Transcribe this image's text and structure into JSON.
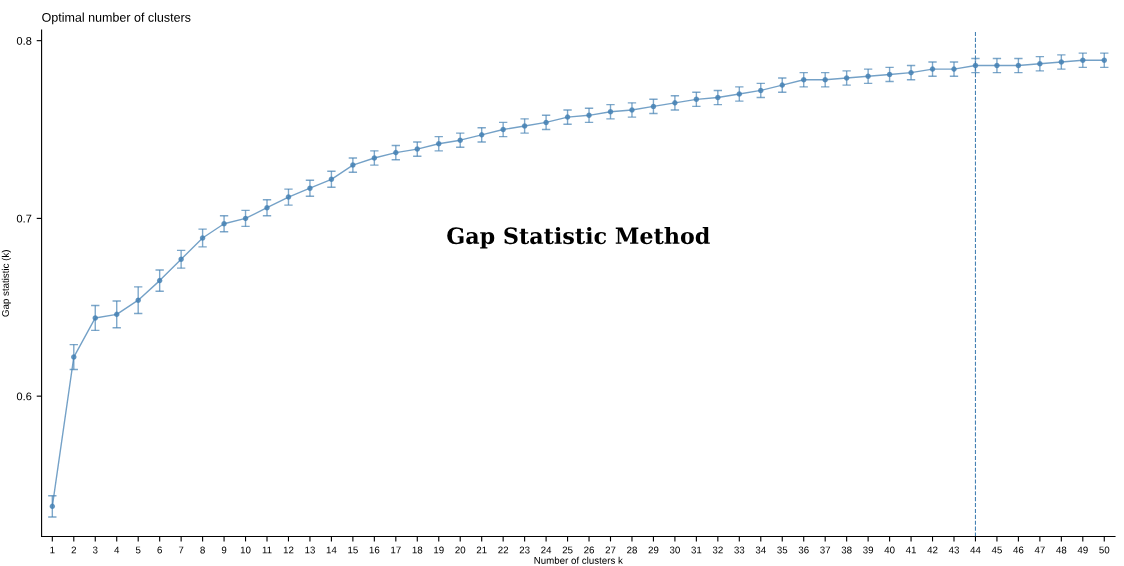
{
  "chart_data": {
    "type": "line",
    "title": "Optimal number of clusters",
    "xlabel": "Number of clusters k",
    "ylabel": "Gap statistic (k)",
    "categories": [
      "1",
      "2",
      "3",
      "4",
      "5",
      "6",
      "7",
      "8",
      "9",
      "10",
      "11",
      "12",
      "13",
      "14",
      "15",
      "16",
      "17",
      "18",
      "19",
      "20",
      "21",
      "22",
      "23",
      "24",
      "25",
      "26",
      "27",
      "28",
      "29",
      "30",
      "31",
      "32",
      "33",
      "34",
      "35",
      "36",
      "37",
      "38",
      "39",
      "40",
      "41",
      "42",
      "43",
      "44",
      "45",
      "46",
      "47",
      "48",
      "49",
      "50"
    ],
    "series": [
      {
        "color": "#4682b4",
        "values": [
          0.538,
          0.622,
          0.644,
          0.646,
          0.654,
          0.665,
          0.677,
          0.689,
          0.697,
          0.7,
          0.706,
          0.712,
          0.717,
          0.722,
          0.73,
          0.734,
          0.737,
          0.739,
          0.742,
          0.744,
          0.747,
          0.75,
          0.752,
          0.754,
          0.757,
          0.758,
          0.76,
          0.761,
          0.763,
          0.765,
          0.767,
          0.768,
          0.77,
          0.772,
          0.775,
          0.778,
          0.778,
          0.779,
          0.78,
          0.781,
          0.782,
          0.784,
          0.784,
          0.786,
          0.786,
          0.786,
          0.787,
          0.788,
          0.789,
          0.789
        ],
        "errors": [
          0.006,
          0.007,
          0.007,
          0.0075,
          0.0075,
          0.006,
          0.005,
          0.005,
          0.0045,
          0.0045,
          0.0045,
          0.0045,
          0.0045,
          0.0045,
          0.004,
          0.004,
          0.004,
          0.004,
          0.004,
          0.004,
          0.004,
          0.004,
          0.004,
          0.004,
          0.004,
          0.004,
          0.004,
          0.004,
          0.004,
          0.004,
          0.004,
          0.004,
          0.004,
          0.004,
          0.004,
          0.004,
          0.004,
          0.004,
          0.004,
          0.004,
          0.004,
          0.004,
          0.004,
          0.004,
          0.004,
          0.004,
          0.004,
          0.004,
          0.004,
          0.004
        ]
      }
    ],
    "ylim": [
      0.521,
      0.806
    ],
    "yticks": [
      0.6,
      0.7,
      0.8
    ],
    "marker": "circle",
    "line_style": "solid",
    "grid": false,
    "legend": false,
    "ref_lines": [
      {
        "axis": "x",
        "value": "44",
        "color": "#4682b4",
        "line_style": "dashed"
      }
    ],
    "annotations": [
      "Gap Statistic Method"
    ]
  }
}
